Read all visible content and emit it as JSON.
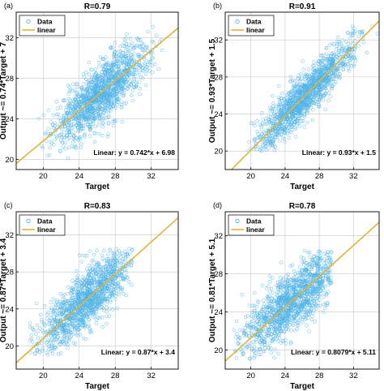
{
  "style": {
    "marker_color": "#4fb3e8",
    "fit_line_color": "#e2b23a",
    "grid_color": "#c8c8c8"
  },
  "chart_data": [
    {
      "panel": "(a)",
      "type": "scatter",
      "title": "R=0.79",
      "xlabel": "Target",
      "ylabel": "Output ~= 0.74*Target + 7",
      "xlim": [
        17,
        35
      ],
      "ylim": [
        19,
        34.5
      ],
      "xticks": [
        20,
        24,
        28,
        32
      ],
      "yticks": [
        20,
        24,
        28,
        32
      ],
      "grid": true,
      "legend": {
        "position": "top-left",
        "entries": [
          "Data",
          "linear"
        ]
      },
      "fit": {
        "slope": 0.742,
        "intercept": 6.98
      },
      "equation": "Linear:  y = 0.742*x + 6.98",
      "cloud": {
        "x_center": 26.5,
        "y_center": 26.6,
        "x_sd": 2.6,
        "y_sd": 2.35,
        "r": 0.79,
        "x_min": 19.5,
        "x_max": 35,
        "y_min": 20,
        "y_max": 33.5
      }
    },
    {
      "panel": "(b)",
      "type": "scatter",
      "title": "R=0.91",
      "xlabel": "Target",
      "ylabel": "Output ~= 0.93*Target + 1.5",
      "xlim": [
        17,
        35
      ],
      "ylim": [
        18,
        35
      ],
      "xticks": [
        20,
        24,
        28,
        32
      ],
      "yticks": [
        20,
        24,
        28,
        32
      ],
      "grid": true,
      "legend": {
        "position": "top-left",
        "entries": [
          "Data",
          "linear"
        ]
      },
      "fit": {
        "slope": 0.93,
        "intercept": 1.5
      },
      "equation": "Linear:  y = 0.93*x + 1.5",
      "cloud": {
        "x_center": 26.3,
        "y_center": 25.96,
        "x_sd": 2.9,
        "y_sd": 2.95,
        "r": 0.91,
        "x_min": 19.5,
        "x_max": 35,
        "y_min": 20,
        "y_max": 33.5
      }
    },
    {
      "panel": "(c)",
      "type": "scatter",
      "title": "R=0.83",
      "xlabel": "Target",
      "ylabel": "Output ~= 0.87*Target + 3.4",
      "xlim": [
        17,
        35
      ],
      "ylim": [
        17.5,
        34.5
      ],
      "xticks": [
        20,
        24,
        28,
        32
      ],
      "yticks": [
        20,
        24,
        28,
        32
      ],
      "grid": true,
      "legend": {
        "position": "top-left",
        "entries": [
          "Data",
          "linear"
        ]
      },
      "fit": {
        "slope": 0.87,
        "intercept": 3.4
      },
      "equation": "Linear:  y = 0.87*x + 3.4",
      "cloud": {
        "x_center": 24.8,
        "y_center": 25.0,
        "x_sd": 2.8,
        "y_sd": 2.9,
        "r": 0.83,
        "x_min": 18.5,
        "x_max": 30,
        "y_min": 19,
        "y_max": 30.5
      }
    },
    {
      "panel": "(d)",
      "type": "scatter",
      "title": "R=0.78",
      "xlabel": "Target",
      "ylabel": "Output ~= 0.81*Target + 5.1",
      "xlim": [
        17,
        35
      ],
      "ylim": [
        18,
        34.5
      ],
      "xticks": [
        20,
        24,
        28,
        32
      ],
      "yticks": [
        20,
        24,
        28,
        32
      ],
      "grid": true,
      "legend": {
        "position": "top-left",
        "entries": [
          "Data",
          "linear"
        ]
      },
      "fit": {
        "slope": 0.8079,
        "intercept": 5.11
      },
      "equation": "Linear:  y = 0.8079*x + 5.11",
      "cloud": {
        "x_center": 24.8,
        "y_center": 25.15,
        "x_sd": 2.8,
        "y_sd": 2.6,
        "r": 0.78,
        "x_min": 18,
        "x_max": 29.5,
        "y_min": 19,
        "y_max": 30.5
      }
    }
  ]
}
